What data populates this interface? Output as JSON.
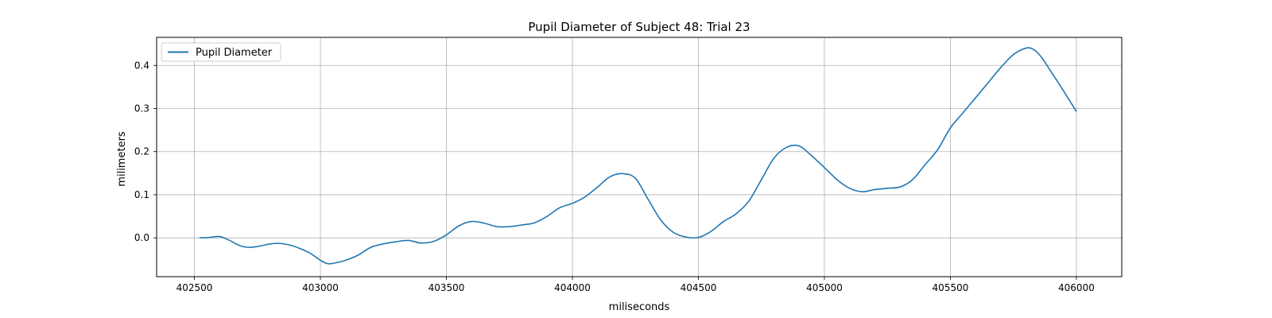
{
  "chart_data": {
    "type": "line",
    "title": "Pupil Diameter of Subject 48: Trial 23",
    "xlabel": "miliseconds",
    "ylabel": "milimeters",
    "xlim": [
      402350,
      406180
    ],
    "ylim": [
      -0.09,
      0.465
    ],
    "xticks": [
      402500,
      403000,
      403500,
      404000,
      404500,
      405000,
      405500,
      406000
    ],
    "yticks": [
      0.0,
      0.1,
      0.2,
      0.3,
      0.4
    ],
    "ytick_labels": [
      "0.0",
      "0.1",
      "0.2",
      "0.3",
      "0.4"
    ],
    "grid": true,
    "legend_position": "top-left",
    "series": [
      {
        "name": "Pupil Diameter",
        "color": "#1f77b4",
        "x": [
          402520,
          402560,
          402600,
          402640,
          402680,
          402720,
          402760,
          402800,
          402840,
          402880,
          402920,
          402960,
          403000,
          403030,
          403060,
          403100,
          403150,
          403200,
          403250,
          403300,
          403350,
          403400,
          403450,
          403500,
          403550,
          403600,
          403650,
          403700,
          403750,
          403800,
          403850,
          403900,
          403950,
          404000,
          404050,
          404100,
          404150,
          404200,
          404250,
          404300,
          404350,
          404400,
          404450,
          404500,
          404550,
          404600,
          404650,
          404700,
          404750,
          404800,
          404850,
          404900,
          404950,
          405000,
          405050,
          405100,
          405150,
          405200,
          405250,
          405300,
          405350,
          405400,
          405450,
          405500,
          405550,
          405600,
          405650,
          405700,
          405750,
          405800,
          405830,
          405860,
          405900,
          405950,
          406000
        ],
        "y": [
          0.0,
          0.001,
          0.003,
          -0.006,
          -0.018,
          -0.022,
          -0.019,
          -0.014,
          -0.013,
          -0.017,
          -0.025,
          -0.036,
          -0.052,
          -0.06,
          -0.058,
          -0.052,
          -0.04,
          -0.022,
          -0.014,
          -0.009,
          -0.006,
          -0.012,
          -0.008,
          0.007,
          0.028,
          0.038,
          0.034,
          0.026,
          0.026,
          0.03,
          0.035,
          0.05,
          0.07,
          0.08,
          0.095,
          0.118,
          0.142,
          0.149,
          0.138,
          0.09,
          0.042,
          0.013,
          0.002,
          0.001,
          0.015,
          0.038,
          0.056,
          0.085,
          0.135,
          0.185,
          0.21,
          0.213,
          0.19,
          0.163,
          0.135,
          0.115,
          0.107,
          0.112,
          0.115,
          0.118,
          0.135,
          0.17,
          0.205,
          0.255,
          0.29,
          0.325,
          0.36,
          0.395,
          0.425,
          0.44,
          0.437,
          0.42,
          0.385,
          0.34,
          0.293
        ]
      }
    ]
  }
}
